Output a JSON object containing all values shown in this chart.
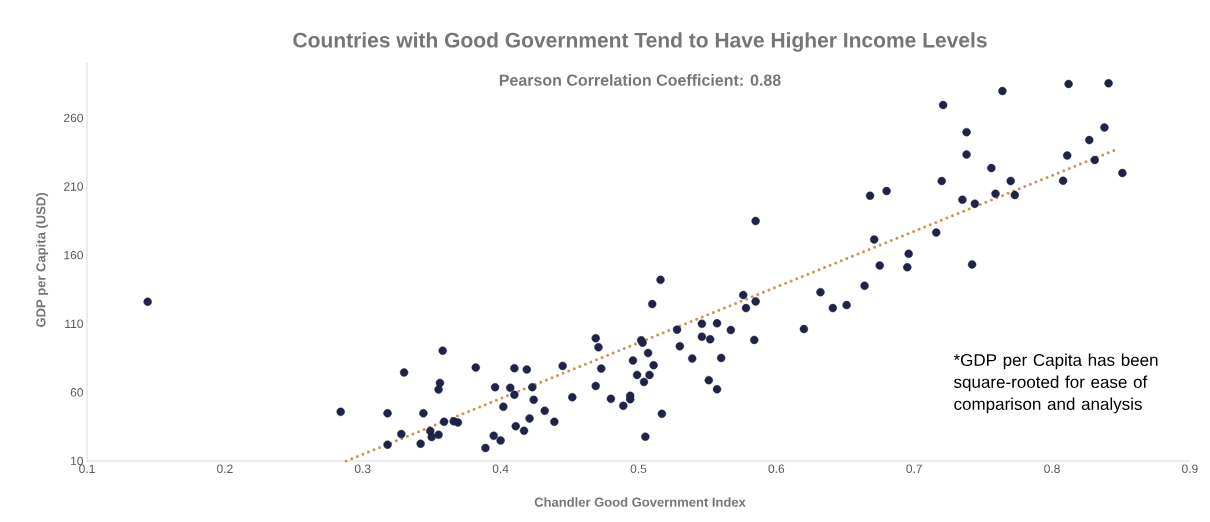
{
  "chart_data": {
    "type": "scatter",
    "title": "Countries with Good Government Tend to Have Higher Income Levels",
    "subtitle": "Pearson Correlation Coefficient: 0.88",
    "xlabel": "Chandler Good Government Index",
    "ylabel": "GDP per Capita (USD)",
    "annotations": [
      "*GDP per Capita has been square-rooted for ease of comparison and analysis"
    ],
    "xlim": [
      0.1,
      0.9
    ],
    "xticks": [
      0.1,
      0.2,
      0.3,
      0.4,
      0.5,
      0.6,
      0.7,
      0.8,
      0.9
    ],
    "ylim": [
      10,
      300
    ],
    "yticks": [
      10,
      60,
      110,
      160,
      210,
      260
    ],
    "grid": false,
    "series": [
      {
        "color": "#1f2347",
        "marker": "circle",
        "x": [
          0.144,
          0.284,
          0.318,
          0.33,
          0.328,
          0.318,
          0.344,
          0.342,
          0.358,
          0.356,
          0.355,
          0.349,
          0.35,
          0.355,
          0.359,
          0.366,
          0.369,
          0.382,
          0.389,
          0.395,
          0.4,
          0.396,
          0.402,
          0.407,
          0.41,
          0.41,
          0.411,
          0.417,
          0.419,
          0.421,
          0.423,
          0.424,
          0.432,
          0.439,
          0.445,
          0.452,
          0.469,
          0.471,
          0.473,
          0.469,
          0.48,
          0.489,
          0.494,
          0.494,
          0.496,
          0.502,
          0.503,
          0.499,
          0.507,
          0.511,
          0.508,
          0.504,
          0.505,
          0.51,
          0.516,
          0.517,
          0.528,
          0.53,
          0.585,
          0.546,
          0.546,
          0.557,
          0.552,
          0.539,
          0.56,
          0.551,
          0.557,
          0.567,
          0.576,
          0.578,
          0.585,
          0.584,
          0.62,
          0.632,
          0.641,
          0.651,
          0.664,
          0.675,
          0.671,
          0.668,
          0.68,
          0.721,
          0.764,
          0.812,
          0.841,
          0.738,
          0.738,
          0.756,
          0.72,
          0.735,
          0.744,
          0.759,
          0.77,
          0.773,
          0.716,
          0.696,
          0.695,
          0.742,
          0.811,
          0.808,
          0.827,
          0.838,
          0.831,
          0.851
        ],
        "values": [
          126,
          45.8,
          44.7,
          74.5,
          29.6,
          21.9,
          44.7,
          22.6,
          90.4,
          66.9,
          62.1,
          31.8,
          27.4,
          29.1,
          38.6,
          38.9,
          38.1,
          78.1,
          19.4,
          28.4,
          25.0,
          63.8,
          49.5,
          63.3,
          77.6,
          58.2,
          35.4,
          32.0,
          76.6,
          41.0,
          63.8,
          54.6,
          46.6,
          38.6,
          79.3,
          56.5,
          99.4,
          92.8,
          77.3,
          64.7,
          55.3,
          50.2,
          57.5,
          55.0,
          83.2,
          97.9,
          96.2,
          72.7,
          88.7,
          79.8,
          72.7,
          67.6,
          27.7,
          124.3,
          142,
          44.4,
          105.7,
          93.6,
          184.9,
          110.0,
          100.6,
          110.3,
          98.7,
          84.6,
          85.1,
          68.9,
          62.3,
          105.4,
          130.9,
          121.4,
          126.3,
          98.2,
          106.1,
          133.0,
          121.4,
          123.6,
          137.7,
          152.4,
          171.3,
          203.3,
          206.7,
          269.4,
          279.6,
          284.7,
          285.2,
          249.6,
          233.3,
          223.4,
          214.0,
          200.4,
          197.5,
          204.8,
          214.0,
          203.8,
          176.4,
          161.0,
          151.2,
          153.2,
          232.6,
          214.2,
          243.8,
          253.0,
          229.3,
          219.8
        ]
      },
      {
        "type": "line",
        "color": "#c4975a",
        "line_style": "dotted",
        "marker": "none",
        "x": [
          0.288,
          0.848
        ],
        "values": [
          10,
          237.5
        ]
      }
    ]
  }
}
